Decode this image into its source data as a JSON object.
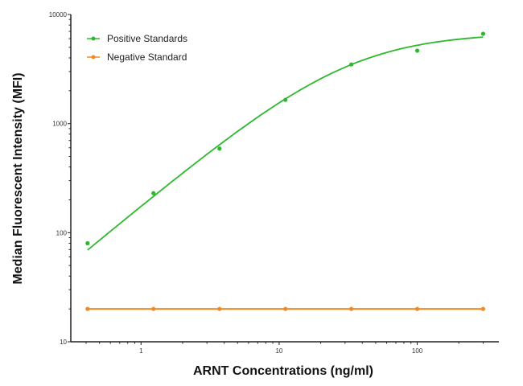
{
  "chart_data": {
    "type": "line",
    "title": "",
    "xlabel": "ARNT Concentrations (ng/ml)",
    "ylabel": "Median  Fluorescent Intensity  (MFI)",
    "xscale": "log",
    "yscale": "log",
    "xlim": [
      0.31,
      390
    ],
    "ylim": [
      10,
      10000
    ],
    "xticks": [
      "1",
      "10",
      "100"
    ],
    "yticks": [
      "10",
      "100",
      "1000",
      "10000"
    ],
    "grid": false,
    "legend_position": "top-left",
    "x": [
      0.41,
      1.23,
      3.7,
      11.1,
      33.3,
      100,
      300
    ],
    "series": [
      {
        "name": "Positive Standards",
        "color": "#2db82d",
        "values": [
          80,
          230,
          590,
          1650,
          3480,
          4660,
          6650
        ],
        "fit_curve": true
      },
      {
        "name": "Negative Standard",
        "color": "#f08a24",
        "values": [
          20,
          20,
          20,
          20,
          20,
          20,
          20
        ],
        "fit_curve": false
      }
    ]
  }
}
